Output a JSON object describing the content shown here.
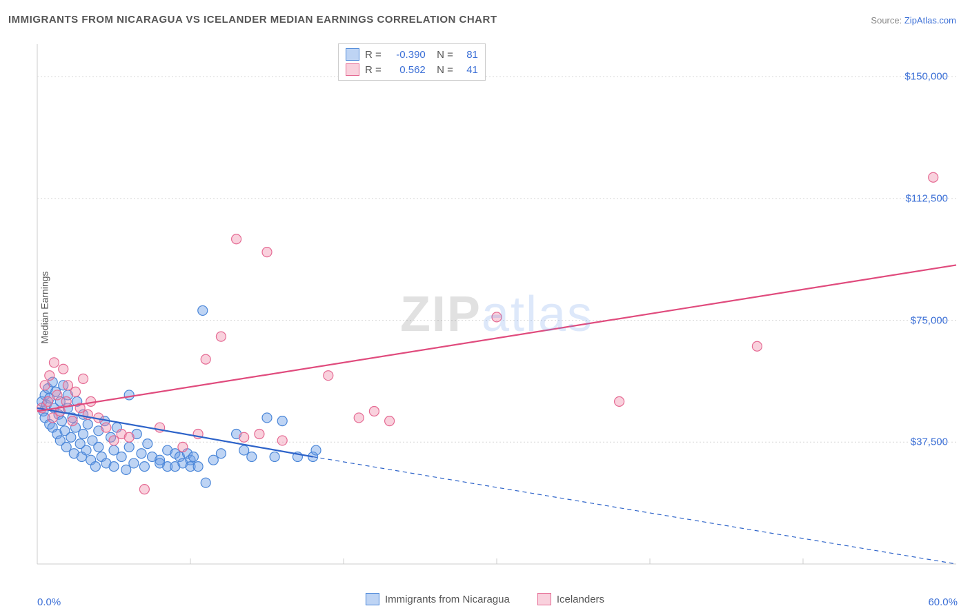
{
  "title": "IMMIGRANTS FROM NICARAGUA VS ICELANDER MEDIAN EARNINGS CORRELATION CHART",
  "source_label": "Source:",
  "source_name": "ZipAtlas.com",
  "ylabel": "Median Earnings",
  "watermark_a": "ZIP",
  "watermark_b": "atlas",
  "chart": {
    "type": "scatter",
    "xlim": [
      0,
      60
    ],
    "ylim": [
      0,
      160000
    ],
    "xaxis_label_left": "0.0%",
    "xaxis_label_right": "60.0%",
    "ytick_labels": [
      "$37,500",
      "$75,000",
      "$112,500",
      "$150,000"
    ],
    "ytick_values": [
      37500,
      75000,
      112500,
      150000
    ],
    "grid_color": "#d8d8d8",
    "axis_color": "#cccccc",
    "background": "#ffffff",
    "marker_radius": 7,
    "marker_stroke_width": 1.2,
    "line_width": 2.2,
    "series": [
      {
        "name": "Immigrants from Nicaragua",
        "fill": "rgba(110,160,230,0.45)",
        "stroke": "#4a86d8",
        "line_color": "#2d63c9",
        "r_value": "-0.390",
        "n_value": "81",
        "regression": {
          "x1": 0,
          "y1": 48000,
          "x2_solid": 18,
          "y2_solid": 33000,
          "x2": 60,
          "y2": 0
        },
        "points": [
          [
            0.3,
            50000
          ],
          [
            0.4,
            47000
          ],
          [
            0.5,
            52000
          ],
          [
            0.5,
            45000
          ],
          [
            0.6,
            49000
          ],
          [
            0.7,
            54000
          ],
          [
            0.8,
            43000
          ],
          [
            0.8,
            51000
          ],
          [
            1.0,
            56000
          ],
          [
            1.0,
            42000
          ],
          [
            1.1,
            48000
          ],
          [
            1.2,
            53000
          ],
          [
            1.3,
            40000
          ],
          [
            1.4,
            46000
          ],
          [
            1.5,
            38000
          ],
          [
            1.5,
            50000
          ],
          [
            1.6,
            44000
          ],
          [
            1.7,
            55000
          ],
          [
            1.8,
            41000
          ],
          [
            1.9,
            36000
          ],
          [
            2.0,
            48000
          ],
          [
            2.0,
            52000
          ],
          [
            2.2,
            39000
          ],
          [
            2.3,
            45000
          ],
          [
            2.4,
            34000
          ],
          [
            2.5,
            42000
          ],
          [
            2.6,
            50000
          ],
          [
            2.8,
            37000
          ],
          [
            2.9,
            33000
          ],
          [
            3.0,
            40000
          ],
          [
            3.0,
            46000
          ],
          [
            3.2,
            35000
          ],
          [
            3.3,
            43000
          ],
          [
            3.5,
            32000
          ],
          [
            3.6,
            38000
          ],
          [
            3.8,
            30000
          ],
          [
            4.0,
            41000
          ],
          [
            4.0,
            36000
          ],
          [
            4.2,
            33000
          ],
          [
            4.4,
            44000
          ],
          [
            4.5,
            31000
          ],
          [
            4.8,
            39000
          ],
          [
            5.0,
            35000
          ],
          [
            5.0,
            30000
          ],
          [
            5.2,
            42000
          ],
          [
            5.5,
            33000
          ],
          [
            5.8,
            29000
          ],
          [
            6.0,
            36000
          ],
          [
            6.0,
            52000
          ],
          [
            6.3,
            31000
          ],
          [
            6.5,
            40000
          ],
          [
            6.8,
            34000
          ],
          [
            7.0,
            30000
          ],
          [
            7.2,
            37000
          ],
          [
            7.5,
            33000
          ],
          [
            8.0,
            32000
          ],
          [
            8.0,
            31000
          ],
          [
            8.5,
            35000
          ],
          [
            8.5,
            30000
          ],
          [
            9.0,
            34000
          ],
          [
            9.0,
            30000
          ],
          [
            9.3,
            33000
          ],
          [
            9.5,
            31000
          ],
          [
            9.8,
            34000
          ],
          [
            10.0,
            32000
          ],
          [
            10.0,
            30000
          ],
          [
            10.2,
            33000
          ],
          [
            10.5,
            30000
          ],
          [
            10.8,
            78000
          ],
          [
            11.0,
            25000
          ],
          [
            11.5,
            32000
          ],
          [
            12.0,
            34000
          ],
          [
            13.0,
            40000
          ],
          [
            13.5,
            35000
          ],
          [
            14.0,
            33000
          ],
          [
            15.0,
            45000
          ],
          [
            15.5,
            33000
          ],
          [
            16.0,
            44000
          ],
          [
            17.0,
            33000
          ],
          [
            18.0,
            33000
          ],
          [
            18.2,
            35000
          ]
        ]
      },
      {
        "name": "Icelanders",
        "fill": "rgba(240,140,170,0.40)",
        "stroke": "#e56a93",
        "line_color": "#e04b7d",
        "r_value": "0.562",
        "n_value": "41",
        "regression": {
          "x1": 0,
          "y1": 47000,
          "x2": 60,
          "y2": 92000
        },
        "points": [
          [
            0.3,
            48000
          ],
          [
            0.5,
            55000
          ],
          [
            0.7,
            50000
          ],
          [
            0.8,
            58000
          ],
          [
            1.0,
            45000
          ],
          [
            1.1,
            62000
          ],
          [
            1.3,
            52000
          ],
          [
            1.5,
            47000
          ],
          [
            1.7,
            60000
          ],
          [
            1.9,
            50000
          ],
          [
            2.0,
            55000
          ],
          [
            2.3,
            44000
          ],
          [
            2.5,
            53000
          ],
          [
            2.8,
            48000
          ],
          [
            3.0,
            57000
          ],
          [
            3.3,
            46000
          ],
          [
            3.5,
            50000
          ],
          [
            4.0,
            45000
          ],
          [
            4.5,
            42000
          ],
          [
            5.0,
            38000
          ],
          [
            5.5,
            40000
          ],
          [
            6.0,
            39000
          ],
          [
            7.0,
            23000
          ],
          [
            8.0,
            42000
          ],
          [
            9.5,
            36000
          ],
          [
            10.5,
            40000
          ],
          [
            11.0,
            63000
          ],
          [
            12.0,
            70000
          ],
          [
            13.0,
            100000
          ],
          [
            13.5,
            39000
          ],
          [
            14.5,
            40000
          ],
          [
            15.0,
            96000
          ],
          [
            16.0,
            38000
          ],
          [
            19.0,
            58000
          ],
          [
            21.0,
            45000
          ],
          [
            22.0,
            47000
          ],
          [
            23.0,
            44000
          ],
          [
            30.0,
            76000
          ],
          [
            38.0,
            50000
          ],
          [
            47.0,
            67000
          ],
          [
            58.5,
            119000
          ]
        ]
      }
    ]
  },
  "legend": {
    "series1_label": "Immigrants from Nicaragua",
    "series2_label": "Icelanders"
  }
}
